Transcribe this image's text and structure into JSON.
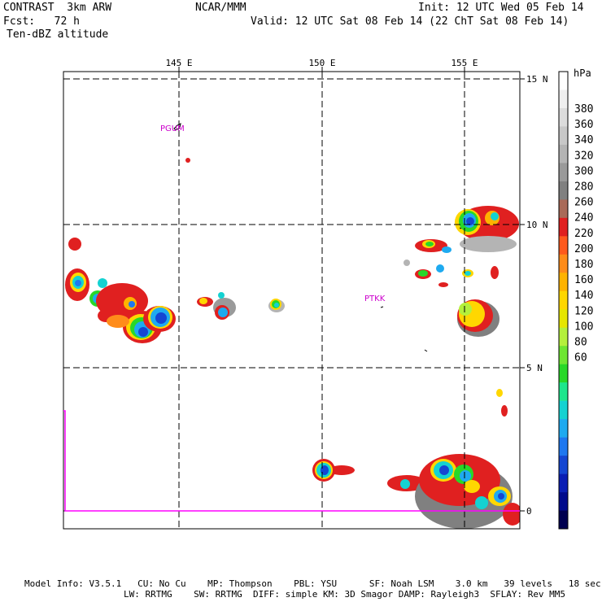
{
  "header": {
    "model": "CONTRAST  3km ARW",
    "center": "NCAR/MMM",
    "init": "Init: 12 UTC Wed 05 Feb 14",
    "fcst": "Fcst:   72 h",
    "valid": "Valid: 12 UTC Sat 08 Feb 14 (22 ChT Sat 08 Feb 14)",
    "field": "Ten-dBZ altitude"
  },
  "map": {
    "lon_labels": [
      "145 E",
      "150 E",
      "155 E"
    ],
    "lat_labels": [
      "15 N",
      "10 N",
      "5 N",
      "0"
    ],
    "stations": [
      "PGUM",
      "PTKK"
    ],
    "colors": {
      "coast": "#000000",
      "grid": "#000000",
      "station": "#cc00cc",
      "boundary": "#ff00ff"
    }
  },
  "colorbar": {
    "unit": "hPa",
    "labels": [
      "380",
      "360",
      "340",
      "320",
      "300",
      "280",
      "260",
      "240",
      "220",
      "200",
      "180",
      "160",
      "140",
      "120",
      "100",
      "80",
      "60"
    ],
    "colors": [
      "#ffffff",
      "#efefef",
      "#dcdcdc",
      "#c8c8c8",
      "#b4b4b4",
      "#9a9a9a",
      "#808080",
      "#a96a58",
      "#e02020",
      "#ff5a1e",
      "#ff8c1a",
      "#ffb300",
      "#ffd700",
      "#e6e600",
      "#b4f03c",
      "#6ee632",
      "#28d828",
      "#1ee68c",
      "#14d2d2",
      "#1eaaf0",
      "#1e78f0",
      "#1446d2",
      "#0a1eb4",
      "#000a8c",
      "#000050"
    ]
  },
  "footer": {
    "line1": "Model Info: V3.5.1   CU: No Cu    MP: Thompson    PBL: YSU      SF: Noah LSM    3.0 km   39 levels   18 sec",
    "line2": "LW: RRTMG    SW: RRTMG  DIFF: simple KM: 3D Smagor DAMP: Rayleigh3  SFLAY: Rev MM5"
  }
}
